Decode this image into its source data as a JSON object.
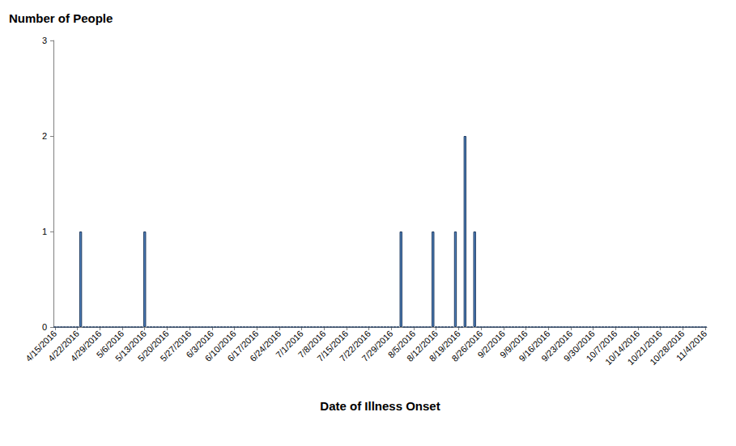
{
  "chart_data": {
    "type": "bar",
    "xlabel": "Date of Illness Onset",
    "ylabel": "Number of People",
    "categories": [
      "4/15/2016",
      null,
      null,
      null,
      null,
      null,
      null,
      "4/22/2016",
      null,
      null,
      null,
      null,
      null,
      null,
      "4/29/2016",
      null,
      null,
      null,
      null,
      null,
      null,
      "5/6/2016",
      null,
      null,
      null,
      null,
      null,
      null,
      "5/13/2016",
      null,
      null,
      null,
      null,
      null,
      null,
      "5/20/2016",
      null,
      null,
      null,
      null,
      null,
      null,
      "5/27/2016",
      null,
      null,
      null,
      null,
      null,
      null,
      "6/3/2016",
      null,
      null,
      null,
      null,
      null,
      null,
      "6/10/2016",
      null,
      null,
      null,
      null,
      null,
      null,
      "6/17/2016",
      null,
      null,
      null,
      null,
      null,
      null,
      "6/24/2016",
      null,
      null,
      null,
      null,
      null,
      null,
      "7/1/2016",
      null,
      null,
      null,
      null,
      null,
      null,
      "7/8/2016",
      null,
      null,
      null,
      null,
      null,
      null,
      "7/15/2016",
      null,
      null,
      null,
      null,
      null,
      null,
      "7/22/2016",
      null,
      null,
      null,
      null,
      null,
      null,
      "7/29/2016",
      null,
      null,
      null,
      null,
      null,
      null,
      "8/5/2016",
      null,
      null,
      null,
      null,
      null,
      null,
      "8/12/2016",
      null,
      null,
      null,
      null,
      null,
      null,
      "8/19/2016",
      null,
      null,
      null,
      null,
      null,
      null,
      "8/26/2016",
      null,
      null,
      null,
      null,
      null,
      null,
      "9/2/2016",
      null,
      null,
      null,
      null,
      null,
      null,
      "9/9/2016",
      null,
      null,
      null,
      null,
      null,
      null,
      "9/16/2016",
      null,
      null,
      null,
      null,
      null,
      null,
      "9/23/2016",
      null,
      null,
      null,
      null,
      null,
      null,
      "9/30/2016",
      null,
      null,
      null,
      null,
      null,
      null,
      "10/7/2016",
      null,
      null,
      null,
      null,
      null,
      null,
      "10/14/2016",
      null,
      null,
      null,
      null,
      null,
      null,
      "10/21/2016",
      null,
      null,
      null,
      null,
      null,
      null,
      "10/28/2016",
      null,
      null,
      null,
      null,
      null,
      null,
      "11/4/2016"
    ],
    "values": [
      0,
      0,
      0,
      0,
      0,
      0,
      0,
      0,
      1,
      0,
      0,
      0,
      0,
      0,
      0,
      0,
      0,
      0,
      0,
      0,
      0,
      0,
      0,
      0,
      0,
      0,
      0,
      0,
      1,
      0,
      0,
      0,
      0,
      0,
      0,
      0,
      0,
      0,
      0,
      0,
      0,
      0,
      0,
      0,
      0,
      0,
      0,
      0,
      0,
      0,
      0,
      0,
      0,
      0,
      0,
      0,
      0,
      0,
      0,
      0,
      0,
      0,
      0,
      0,
      0,
      0,
      0,
      0,
      0,
      0,
      0,
      0,
      0,
      0,
      0,
      0,
      0,
      0,
      0,
      0,
      0,
      0,
      0,
      0,
      0,
      0,
      0,
      0,
      0,
      0,
      0,
      0,
      0,
      0,
      0,
      0,
      0,
      0,
      0,
      0,
      0,
      0,
      0,
      0,
      0,
      0,
      0,
      0,
      1,
      0,
      0,
      0,
      0,
      0,
      0,
      0,
      0,
      0,
      1,
      0,
      0,
      0,
      0,
      0,
      0,
      1,
      0,
      0,
      2,
      0,
      0,
      1,
      0,
      0,
      0,
      0,
      0,
      0,
      0,
      0,
      0,
      0,
      0,
      0,
      0,
      0,
      0,
      0,
      0,
      0,
      0,
      0,
      0,
      0,
      0,
      0,
      0,
      0,
      0,
      0,
      0,
      0,
      0,
      0,
      0,
      0,
      0,
      0,
      0,
      0,
      0,
      0,
      0,
      0,
      0,
      0,
      0,
      0,
      0,
      0,
      0,
      0,
      0,
      0,
      0,
      0,
      0,
      0,
      0,
      0,
      0,
      0,
      0,
      0,
      0,
      0,
      0,
      0,
      0,
      0,
      0,
      0,
      0,
      0
    ],
    "color": "#4f81bd",
    "ylim": [
      0,
      3
    ],
    "yticks": [
      0,
      1,
      2,
      3
    ],
    "grid": false
  }
}
